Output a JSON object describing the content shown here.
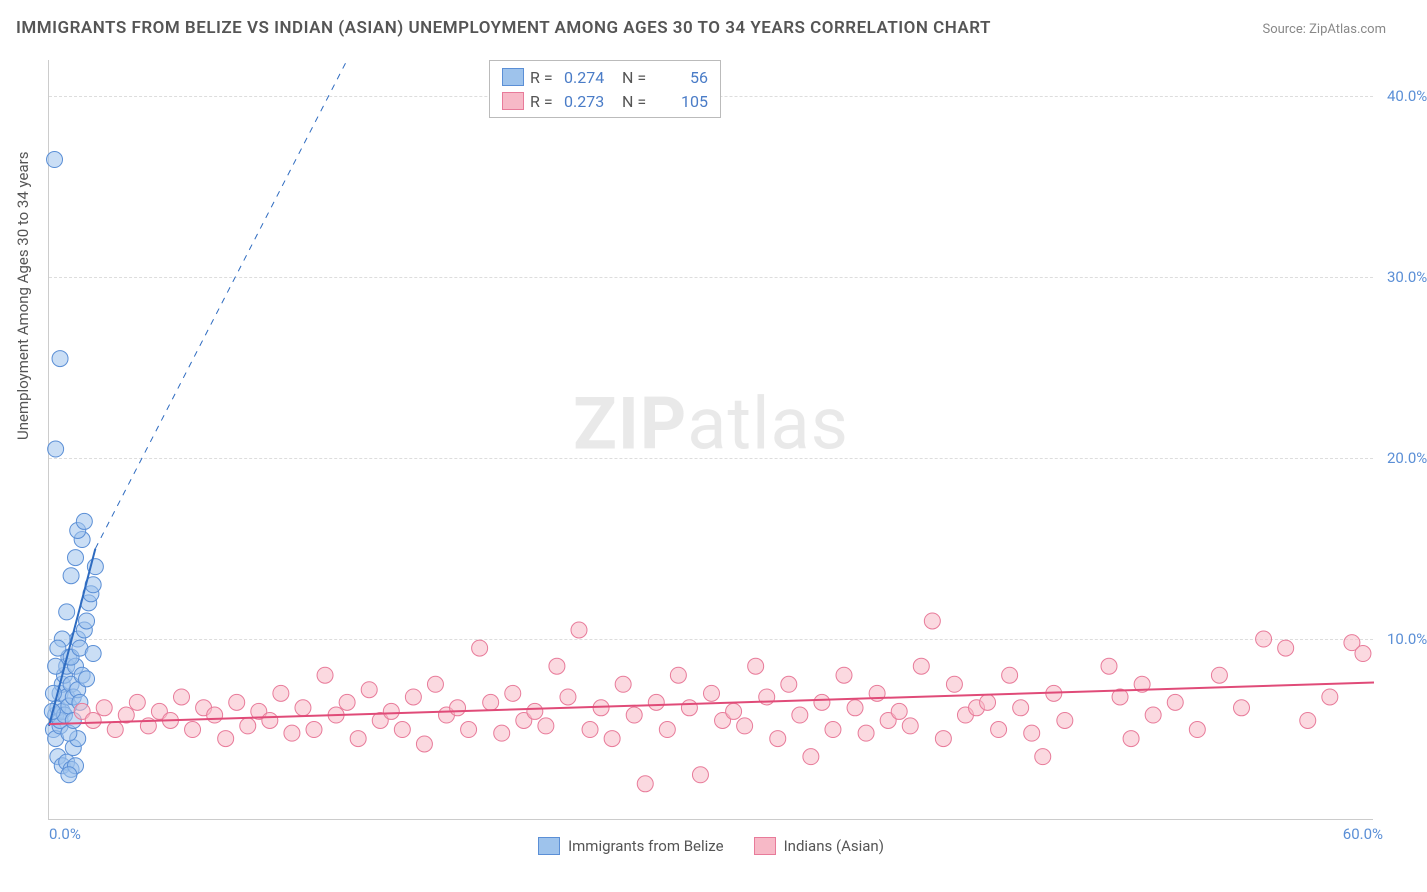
{
  "title": "IMMIGRANTS FROM BELIZE VS INDIAN (ASIAN) UNEMPLOYMENT AMONG AGES 30 TO 34 YEARS CORRELATION CHART",
  "source": "Source: ZipAtlas.com",
  "yaxis_label": "Unemployment Among Ages 30 to 34 years",
  "watermark_a": "ZIP",
  "watermark_b": "atlas",
  "chart": {
    "type": "scatter",
    "background_color": "#ffffff",
    "grid_color": "#dddddd",
    "axis_color": "#cccccc",
    "tick_color": "#5b8fd6",
    "label_color": "#555555",
    "xlim": [
      0,
      60
    ],
    "ylim": [
      0,
      42
    ],
    "yticks": [
      10,
      20,
      30,
      40
    ],
    "ytick_labels": [
      "10.0%",
      "20.0%",
      "30.0%",
      "40.0%"
    ],
    "x_min_label": "0.0%",
    "x_max_label": "60.0%",
    "marker_radius": 8,
    "marker_opacity": 0.55,
    "series": [
      {
        "name": "Immigrants from Belize",
        "legend_label": "Immigrants from Belize",
        "color_fill": "#9ec3ec",
        "color_stroke": "#5b8fd6",
        "R_label": "R =",
        "R": "0.274",
        "N_label": "N =",
        "N": "56",
        "trend": {
          "x1": 0,
          "y1": 5.2,
          "x2": 2.1,
          "y2": 15.0,
          "dash_to_x": 13.5,
          "dash_to_y": 42,
          "color": "#2e6bc0",
          "width": 2
        },
        "points": [
          [
            0.2,
            5.0
          ],
          [
            0.3,
            5.8
          ],
          [
            0.4,
            6.2
          ],
          [
            0.5,
            7.0
          ],
          [
            0.6,
            7.5
          ],
          [
            0.7,
            8.0
          ],
          [
            0.8,
            8.5
          ],
          [
            0.9,
            9.0
          ],
          [
            0.3,
            4.5
          ],
          [
            0.5,
            5.2
          ],
          [
            0.6,
            6.0
          ],
          [
            0.8,
            6.8
          ],
          [
            1.0,
            7.5
          ],
          [
            1.2,
            8.5
          ],
          [
            1.0,
            9.0
          ],
          [
            1.3,
            10.0
          ],
          [
            0.4,
            3.5
          ],
          [
            0.6,
            3.0
          ],
          [
            0.8,
            3.2
          ],
          [
            1.0,
            2.8
          ],
          [
            1.2,
            3.0
          ],
          [
            0.9,
            2.5
          ],
          [
            1.1,
            4.0
          ],
          [
            1.3,
            4.5
          ],
          [
            0.5,
            5.5
          ],
          [
            0.7,
            5.8
          ],
          [
            0.9,
            6.3
          ],
          [
            1.1,
            6.8
          ],
          [
            1.3,
            7.2
          ],
          [
            1.5,
            8.0
          ],
          [
            1.4,
            9.5
          ],
          [
            1.6,
            10.5
          ],
          [
            1.7,
            11.0
          ],
          [
            1.8,
            12.0
          ],
          [
            1.9,
            12.5
          ],
          [
            2.0,
            13.0
          ],
          [
            2.1,
            14.0
          ],
          [
            1.5,
            15.5
          ],
          [
            1.3,
            16.0
          ],
          [
            1.6,
            16.5
          ],
          [
            1.2,
            14.5
          ],
          [
            1.0,
            13.5
          ],
          [
            0.8,
            11.5
          ],
          [
            0.6,
            10.0
          ],
          [
            0.4,
            9.5
          ],
          [
            0.3,
            8.5
          ],
          [
            0.2,
            7.0
          ],
          [
            0.15,
            6.0
          ],
          [
            0.3,
            20.5
          ],
          [
            0.5,
            25.5
          ],
          [
            0.25,
            36.5
          ],
          [
            0.9,
            4.8
          ],
          [
            1.1,
            5.5
          ],
          [
            1.4,
            6.5
          ],
          [
            1.7,
            7.8
          ],
          [
            2.0,
            9.2
          ]
        ]
      },
      {
        "name": "Indians (Asian)",
        "legend_label": "Indians (Asian)",
        "color_fill": "#f7b9c7",
        "color_stroke": "#e87b9a",
        "R_label": "R =",
        "R": "0.273",
        "N_label": "N =",
        "N": "105",
        "trend": {
          "x1": 0,
          "y1": 5.3,
          "x2": 60,
          "y2": 7.6,
          "color": "#e04b78",
          "width": 2
        },
        "points": [
          [
            1.5,
            6.0
          ],
          [
            2.0,
            5.5
          ],
          [
            2.5,
            6.2
          ],
          [
            3.0,
            5.0
          ],
          [
            3.5,
            5.8
          ],
          [
            4.0,
            6.5
          ],
          [
            4.5,
            5.2
          ],
          [
            5.0,
            6.0
          ],
          [
            5.5,
            5.5
          ],
          [
            6.0,
            6.8
          ],
          [
            6.5,
            5.0
          ],
          [
            7.0,
            6.2
          ],
          [
            7.5,
            5.8
          ],
          [
            8.0,
            4.5
          ],
          [
            8.5,
            6.5
          ],
          [
            9.0,
            5.2
          ],
          [
            9.5,
            6.0
          ],
          [
            10.0,
            5.5
          ],
          [
            10.5,
            7.0
          ],
          [
            11.0,
            4.8
          ],
          [
            11.5,
            6.2
          ],
          [
            12.0,
            5.0
          ],
          [
            12.5,
            8.0
          ],
          [
            13.0,
            5.8
          ],
          [
            13.5,
            6.5
          ],
          [
            14.0,
            4.5
          ],
          [
            14.5,
            7.2
          ],
          [
            15.0,
            5.5
          ],
          [
            15.5,
            6.0
          ],
          [
            16.0,
            5.0
          ],
          [
            16.5,
            6.8
          ],
          [
            17.0,
            4.2
          ],
          [
            17.5,
            7.5
          ],
          [
            18.0,
            5.8
          ],
          [
            18.5,
            6.2
          ],
          [
            19.0,
            5.0
          ],
          [
            19.5,
            9.5
          ],
          [
            20.0,
            6.5
          ],
          [
            20.5,
            4.8
          ],
          [
            21.0,
            7.0
          ],
          [
            21.5,
            5.5
          ],
          [
            22.0,
            6.0
          ],
          [
            22.5,
            5.2
          ],
          [
            23.0,
            8.5
          ],
          [
            23.5,
            6.8
          ],
          [
            24.0,
            10.5
          ],
          [
            24.5,
            5.0
          ],
          [
            25.0,
            6.2
          ],
          [
            25.5,
            4.5
          ],
          [
            26.0,
            7.5
          ],
          [
            26.5,
            5.8
          ],
          [
            27.0,
            2.0
          ],
          [
            27.5,
            6.5
          ],
          [
            28.0,
            5.0
          ],
          [
            28.5,
            8.0
          ],
          [
            29.0,
            6.2
          ],
          [
            29.5,
            2.5
          ],
          [
            30.0,
            7.0
          ],
          [
            30.5,
            5.5
          ],
          [
            31.0,
            6.0
          ],
          [
            31.5,
            5.2
          ],
          [
            32.0,
            8.5
          ],
          [
            32.5,
            6.8
          ],
          [
            33.0,
            4.5
          ],
          [
            33.5,
            7.5
          ],
          [
            34.0,
            5.8
          ],
          [
            34.5,
            3.5
          ],
          [
            35.0,
            6.5
          ],
          [
            35.5,
            5.0
          ],
          [
            36.0,
            8.0
          ],
          [
            36.5,
            6.2
          ],
          [
            37.0,
            4.8
          ],
          [
            37.5,
            7.0
          ],
          [
            38.0,
            5.5
          ],
          [
            38.5,
            6.0
          ],
          [
            39.0,
            5.2
          ],
          [
            39.5,
            8.5
          ],
          [
            40.0,
            11.0
          ],
          [
            40.5,
            4.5
          ],
          [
            41.0,
            7.5
          ],
          [
            41.5,
            5.8
          ],
          [
            42.0,
            6.2
          ],
          [
            42.5,
            6.5
          ],
          [
            43.0,
            5.0
          ],
          [
            43.5,
            8.0
          ],
          [
            44.0,
            6.2
          ],
          [
            44.5,
            4.8
          ],
          [
            45.0,
            3.5
          ],
          [
            45.5,
            7.0
          ],
          [
            46.0,
            5.5
          ],
          [
            48.0,
            8.5
          ],
          [
            48.5,
            6.8
          ],
          [
            49.0,
            4.5
          ],
          [
            49.5,
            7.5
          ],
          [
            50.0,
            5.8
          ],
          [
            51.0,
            6.5
          ],
          [
            52.0,
            5.0
          ],
          [
            53.0,
            8.0
          ],
          [
            54.0,
            6.2
          ],
          [
            55.0,
            10.0
          ],
          [
            56.0,
            9.5
          ],
          [
            57.0,
            5.5
          ],
          [
            58.0,
            6.8
          ],
          [
            59.0,
            9.8
          ],
          [
            59.5,
            9.2
          ]
        ]
      }
    ]
  }
}
